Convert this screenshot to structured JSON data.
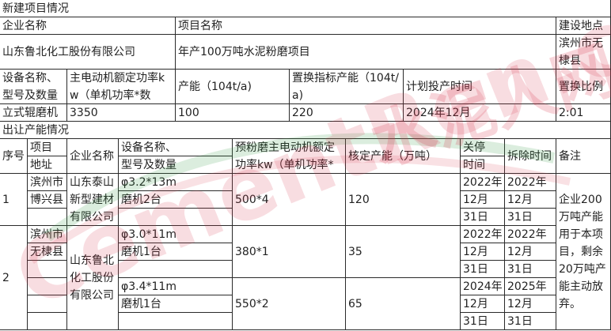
{
  "new_project": {
    "section_title": "新建项目情况",
    "headers": {
      "company": "企业名称",
      "project": "项目名称",
      "location": "建设地点"
    },
    "company": "山东鲁北化工股份有限公司",
    "project": "年产100万吨水泥粉磨项目",
    "location": "滨州市无棣县",
    "eq_headers": [
      "设备名称、型号及数量",
      "主电动机额定功率kw（单机功率*数",
      "产能（104t/a)",
      "置换指标产能（104t/a)",
      "计划投产时间",
      "置换比例"
    ],
    "values": [
      "立式辊磨机",
      "3350",
      "100",
      "220",
      "2024年12月",
      "2:01"
    ]
  },
  "transfer": {
    "section_title": "出让产能情况",
    "headers": {
      "seq": "序号",
      "addr": [
        "项目",
        "地址"
      ],
      "company": "企业名称",
      "equipment": [
        "设备名称、",
        "型号及数量"
      ],
      "power": "预粉磨主电动机额定功率kw（单机功率*",
      "capacity": "核定产能（万吨）",
      "shutdown": [
        "关停",
        "时间"
      ],
      "removal": "拆除时间",
      "remark": "备注"
    },
    "items": [
      {
        "seq": "1",
        "addr": [
          "滨州市",
          "博兴县"
        ],
        "company": "山东泰山新型建材有限公司",
        "lines": [
          {
            "equipment": [
              "φ3.2*13m",
              "磨机2台"
            ],
            "power": "500*4",
            "capacity": "120",
            "shutdown": [
              "2022年",
              "12月",
              "31日"
            ],
            "removal": [
              "2022年",
              "12月",
              "31日"
            ]
          }
        ]
      },
      {
        "seq": "2",
        "addr": [
          "滨州市",
          "无棣县"
        ],
        "company": "山东鲁北化工股份有限公司",
        "lines": [
          {
            "equipment": [
              "φ3.0*11m",
              "磨机1台"
            ],
            "power": "380*1",
            "capacity": "35",
            "shutdown": [
              "2022年",
              "12月",
              "31日"
            ],
            "removal": [
              "2022年",
              "12月",
              "31日"
            ]
          },
          {
            "equipment": [
              "φ3.4*11m",
              "磨机1台"
            ],
            "power": "550*2",
            "capacity": "65",
            "shutdown": [
              "2024年",
              "12月",
              "31日"
            ],
            "removal": [
              "2025年",
              "12月",
              "31日"
            ]
          }
        ]
      }
    ],
    "remark": "企业200万吨产能用于本项目，剩余20万吨产能主动放弃。"
  },
  "watermark": {
    "text_en": "CementRen.com",
    "text_cn": "水泥人网",
    "colors": [
      "#d8334c",
      "#3a9a4a",
      "#e8a23a"
    ]
  }
}
